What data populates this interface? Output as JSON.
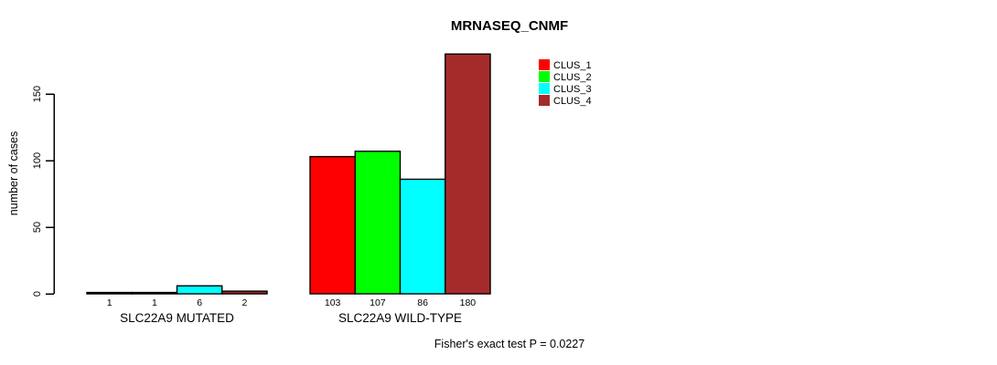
{
  "chart_data": {
    "type": "bar",
    "title": "MRNASEQ_CNMF",
    "ylabel": "number of cases",
    "xlabel": "",
    "categories": [
      "SLC22A9 MUTATED",
      "SLC22A9 WILD-TYPE"
    ],
    "series": [
      {
        "name": "CLUS_1",
        "color": "#FF0000",
        "values": [
          1,
          103
        ]
      },
      {
        "name": "CLUS_2",
        "color": "#00FF00",
        "values": [
          1,
          107
        ]
      },
      {
        "name": "CLUS_3",
        "color": "#00FFFF",
        "values": [
          6,
          86
        ]
      },
      {
        "name": "CLUS_4",
        "color": "#A52A2A",
        "values": [
          2,
          180
        ]
      }
    ],
    "yticks": [
      0,
      50,
      100,
      150
    ],
    "ylim": [
      0,
      185
    ],
    "bar_value_labels": [
      [
        "1",
        "1",
        "6",
        "2"
      ],
      [
        "103",
        "107",
        "86",
        "180"
      ]
    ],
    "grid": false,
    "legend": {
      "position": "top-right",
      "entries": [
        "CLUS_1",
        "CLUS_2",
        "CLUS_3",
        "CLUS_4"
      ]
    },
    "annotation": "Fisher's exact test P = 0.0227"
  },
  "style_colors": {
    "background": "#FFFFFF",
    "bar_border": "#000000",
    "axis": "#000000",
    "text": "#000000"
  }
}
